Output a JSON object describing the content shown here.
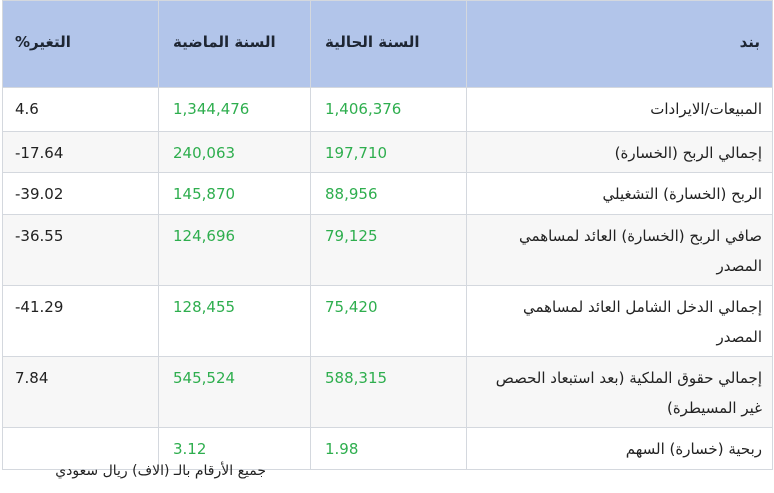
{
  "header": {
    "item": "بند",
    "current_year": "السنة الحالية",
    "previous_year": "السنة الماضية",
    "change": "التغير%"
  },
  "rows": [
    {
      "item": "المبيعات/الايرادات",
      "current": "1,406,376",
      "previous": "1,344,476",
      "change": "4.6"
    },
    {
      "item": "إجمالي الربح (الخسارة)",
      "current": "197,710",
      "previous": "240,063",
      "change": "17.64-"
    },
    {
      "item": "الربح (الخسارة) التشغيلي",
      "current": "88,956",
      "previous": "145,870",
      "change": "39.02-"
    },
    {
      "item": "صافي الربح (الخسارة) العائد لمساهمي المصدر",
      "current": "79,125",
      "previous": "124,696",
      "change": "36.55-"
    },
    {
      "item": "إجمالي الدخل الشامل العائد لمساهمي المصدر",
      "current": "75,420",
      "previous": "128,455",
      "change": "41.29-"
    },
    {
      "item": "إجمالي حقوق الملكية (بعد استبعاد الحصص غير المسيطرة)",
      "current": "588,315",
      "previous": "545,524",
      "change": "7.84"
    },
    {
      "item": "ربحية (خسارة) السهم",
      "current": "1.98",
      "previous": "3.12",
      "change": ""
    }
  ],
  "footnote": "جميع الأرقام بالـ (الاف) ريال سعودي",
  "colors": {
    "header_bg": "#b2c5ea",
    "value_green": "#2eae4e",
    "border": "#d4d8de"
  }
}
